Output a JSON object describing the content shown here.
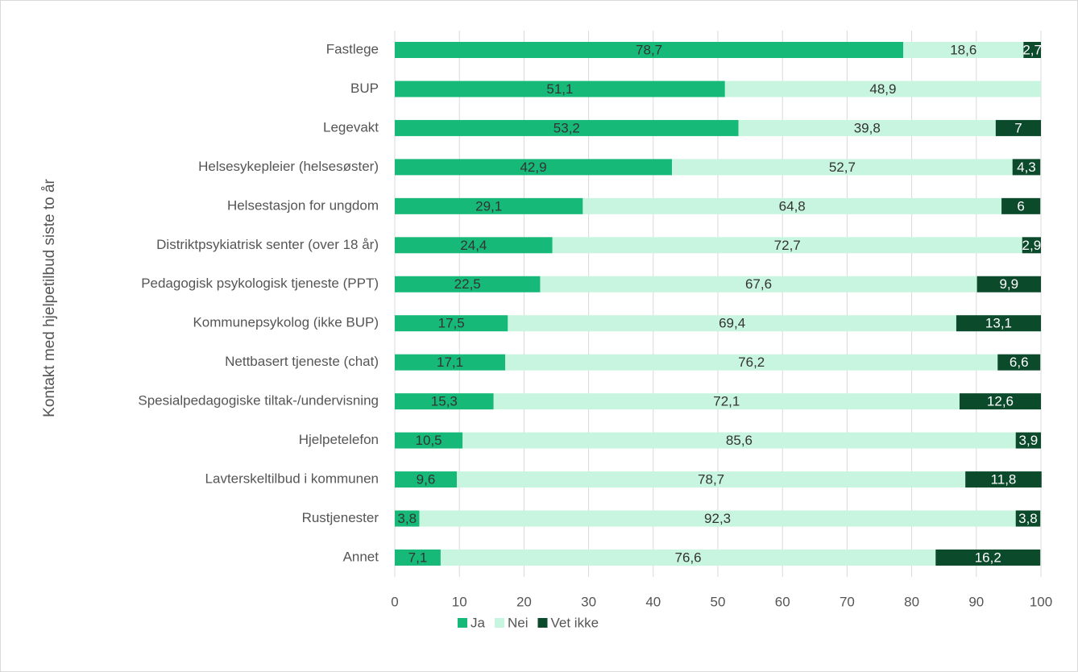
{
  "chart_data": {
    "type": "stacked_bar_horizontal",
    "y_label": "Kontakt med hjelpetilbud siste to år",
    "categories": [
      "Fastlege",
      "BUP",
      "Legevakt",
      "Helsesykepleier (helsesøster)",
      "Helsestasjon for ungdom",
      "Distriktpsykiatrisk senter (over 18 år)",
      "Pedagogisk psykologisk tjeneste (PPT)",
      "Kommunepsykolog (ikke BUP)",
      "Nettbasert tjeneste (chat)",
      "Spesialpedagogiske tiltak-/undervisning",
      "Hjelpetelefon",
      "Lavterskeltilbud i kommunen",
      "Rustjenester",
      "Annet"
    ],
    "series": [
      {
        "name": "Ja",
        "color": "#17b978",
        "label_color": "#333333",
        "values": [
          78.7,
          51.1,
          53.2,
          42.9,
          29.1,
          24.4,
          22.5,
          17.5,
          17.1,
          15.3,
          10.5,
          9.6,
          3.8,
          7.1
        ],
        "value_labels": [
          "78,7",
          "51,1",
          "53,2",
          "42,9",
          "29,1",
          "24,4",
          "22,5",
          "17,5",
          "17,1",
          "15,3",
          "10,5",
          "9,6",
          "3,8",
          "7,1"
        ]
      },
      {
        "name": "Nei",
        "color": "#c8f5df",
        "label_color": "#333333",
        "values": [
          18.6,
          48.9,
          39.8,
          52.7,
          64.8,
          72.7,
          67.6,
          69.4,
          76.2,
          72.1,
          85.6,
          78.7,
          92.3,
          76.6
        ],
        "value_labels": [
          "18,6",
          "48,9",
          "39,8",
          "52,7",
          "64,8",
          "72,7",
          "67,6",
          "69,4",
          "76,2",
          "72,1",
          "85,6",
          "78,7",
          "92,3",
          "76,6"
        ]
      },
      {
        "name": "Vet ikke",
        "color": "#0b4a2b",
        "label_color": "#ffffff",
        "values": [
          2.7,
          null,
          7,
          4.3,
          6,
          2.9,
          9.9,
          13.1,
          6.6,
          12.6,
          3.9,
          11.8,
          3.8,
          16.2
        ],
        "value_labels": [
          "2,7",
          null,
          "7",
          "4,3",
          "6",
          "2,9",
          "9,9",
          "13,1",
          "6,6",
          "12,6",
          "3,9",
          "11,8",
          "3,8",
          "16,2"
        ]
      }
    ],
    "xlim": [
      0,
      100
    ],
    "xticks": [
      0,
      10,
      20,
      30,
      40,
      50,
      60,
      70,
      80,
      90,
      100
    ],
    "grid": true,
    "legend": "bottom"
  }
}
